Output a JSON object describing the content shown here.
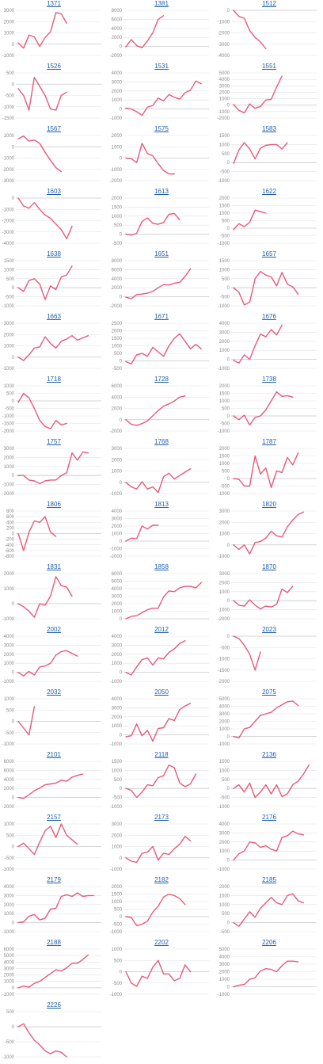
{
  "chart_data": [
    {
      "type": "line",
      "title": "1371",
      "ylim": [
        -1000,
        3000
      ],
      "yticks": [
        -1000,
        0,
        1000,
        2000,
        3000
      ],
      "y": [
        100,
        -350,
        800,
        650,
        -200,
        600,
        1100,
        2800,
        2700,
        1850
      ]
    },
    {
      "type": "line",
      "title": "1381",
      "ylim": [
        -2000,
        8000
      ],
      "yticks": [
        -2000,
        0,
        2000,
        4000,
        6000,
        8000
      ],
      "y": [
        -100,
        1500,
        200,
        -300,
        1200,
        3000,
        6000,
        6800
      ]
    },
    {
      "type": "line",
      "title": "1512",
      "ylim": [
        -4000,
        0
      ],
      "yticks": [
        -4000,
        -3000,
        -2000,
        -1000,
        0
      ],
      "y": [
        0,
        -550,
        -700,
        -1800,
        -2400,
        -2800,
        -3400
      ]
    },
    {
      "type": "line",
      "title": "1526",
      "ylim": [
        -1500,
        500
      ],
      "yticks": [
        -1500,
        -1000,
        -500,
        0,
        500
      ],
      "y": [
        -200,
        -500,
        -1150,
        300,
        -100,
        -500,
        -1100,
        -1150,
        -500,
        -350
      ]
    },
    {
      "type": "line",
      "title": "1531",
      "ylim": [
        -1000,
        4000
      ],
      "yticks": [
        -1000,
        0,
        1000,
        2000,
        3000,
        4000
      ],
      "y": [
        100,
        0,
        -300,
        -700,
        200,
        400,
        1200,
        900,
        1600,
        1300,
        1100,
        1800,
        2100,
        3100,
        2800
      ]
    },
    {
      "type": "line",
      "title": "1551",
      "ylim": [
        -2000,
        5000
      ],
      "yticks": [
        -2000,
        -1000,
        0,
        1000,
        2000,
        3000,
        4000,
        5000
      ],
      "y": [
        100,
        -800,
        -1200,
        200,
        -500,
        -200,
        800,
        900,
        2800,
        4500
      ]
    },
    {
      "type": "line",
      "title": "1567",
      "ylim": [
        -3000,
        1000
      ],
      "yticks": [
        -3000,
        -2000,
        -1000,
        0,
        1000
      ],
      "y": [
        700,
        950,
        500,
        600,
        300,
        -500,
        -1200,
        -1850,
        -2200
      ]
    },
    {
      "type": "line",
      "title": "1575",
      "ylim": [
        -2000,
        2000
      ],
      "yticks": [
        -2000,
        -1000,
        0,
        1000,
        2000
      ],
      "y": [
        0,
        -50,
        -400,
        1300,
        400,
        200,
        -500,
        -1100,
        -1400,
        -1400
      ]
    },
    {
      "type": "line",
      "title": "1583",
      "ylim": [
        -1000,
        1500
      ],
      "yticks": [
        -1000,
        -500,
        0,
        500,
        1000,
        1500
      ],
      "y": [
        -50,
        700,
        1100,
        750,
        200,
        800,
        950,
        1000,
        1000,
        750,
        1100
      ]
    },
    {
      "type": "line",
      "title": "1603",
      "ylim": [
        -4000,
        0
      ],
      "yticks": [
        -4000,
        -3000,
        -2000,
        -1000,
        0
      ],
      "y": [
        0,
        -700,
        -900,
        -400,
        -1000,
        -1500,
        -1800,
        -2300,
        -2800,
        -3600,
        -2500
      ]
    },
    {
      "type": "line",
      "title": "1613",
      "ylim": [
        -500,
        2000
      ],
      "yticks": [
        -500,
        0,
        500,
        1000,
        1500,
        2000
      ],
      "y": [
        0,
        -50,
        50,
        700,
        900,
        600,
        550,
        650,
        1100,
        1150,
        800
      ]
    },
    {
      "type": "line",
      "title": "1622",
      "ylim": [
        -1000,
        2000
      ],
      "yticks": [
        -1000,
        -500,
        0,
        500,
        1000,
        1500,
        2000
      ],
      "y": [
        -100,
        300,
        100,
        400,
        1200,
        1100,
        1000
      ]
    },
    {
      "type": "line",
      "title": "1638",
      "ylim": [
        -1000,
        1500
      ],
      "yticks": [
        -1000,
        -500,
        0,
        500,
        1000,
        1500
      ],
      "y": [
        0,
        -200,
        400,
        500,
        200,
        -650,
        100,
        -100,
        600,
        700,
        1200
      ]
    },
    {
      "type": "line",
      "title": "1651",
      "ylim": [
        -2000,
        8000
      ],
      "yticks": [
        -2000,
        0,
        2000,
        4000,
        6000,
        8000
      ],
      "y": [
        -100,
        -400,
        500,
        600,
        800,
        1200,
        2000,
        2700,
        2600,
        3000,
        3200,
        4500,
        6200
      ]
    },
    {
      "type": "line",
      "title": "1657",
      "ylim": [
        -1000,
        1500
      ],
      "yticks": [
        -1000,
        -500,
        0,
        500,
        1000,
        1500
      ],
      "y": [
        0,
        -250,
        -950,
        -800,
        500,
        900,
        700,
        600,
        100,
        850,
        200,
        50,
        -350
      ]
    },
    {
      "type": "line",
      "title": "1663",
      "ylim": [
        -1000,
        3000
      ],
      "yticks": [
        -1000,
        0,
        1000,
        2000,
        3000
      ],
      "y": [
        0,
        -300,
        200,
        800,
        900,
        1800,
        1200,
        800,
        1400,
        1600,
        1900,
        1500,
        1700,
        1900
      ]
    },
    {
      "type": "line",
      "title": "1671",
      "ylim": [
        -500,
        2500
      ],
      "yticks": [
        -500,
        0,
        500,
        1000,
        1500,
        2000,
        2500
      ],
      "y": [
        -50,
        -200,
        400,
        500,
        300,
        900,
        600,
        300,
        1000,
        1500,
        1800,
        1300,
        800,
        1100,
        800
      ]
    },
    {
      "type": "line",
      "title": "1676",
      "ylim": [
        -1000,
        4000
      ],
      "yticks": [
        -1000,
        0,
        1000,
        2000,
        3000,
        4000
      ],
      "y": [
        -100,
        -400,
        500,
        0,
        1500,
        2800,
        2500,
        3300,
        2700,
        3800
      ]
    },
    {
      "type": "line",
      "title": "1718",
      "ylim": [
        -2000,
        1000
      ],
      "yticks": [
        -2000,
        -1500,
        -1000,
        -500,
        0,
        500,
        1000
      ],
      "y": [
        -100,
        500,
        200,
        -500,
        -1300,
        -1700,
        -1850,
        -1300,
        -1600,
        -1500
      ]
    },
    {
      "type": "line",
      "title": "1728",
      "ylim": [
        -2000,
        6000
      ],
      "yticks": [
        -2000,
        0,
        2000,
        4000,
        6000
      ],
      "y": [
        0,
        -800,
        -1000,
        -700,
        -200,
        700,
        1600,
        2400,
        2800,
        3300,
        4000,
        4200
      ]
    },
    {
      "type": "line",
      "title": "1738",
      "ylim": [
        -1000,
        2000
      ],
      "yticks": [
        -1000,
        -500,
        0,
        500,
        1000,
        1500,
        2000
      ],
      "y": [
        0,
        -250,
        50,
        -600,
        -100,
        0,
        400,
        1000,
        1600,
        1300,
        1350,
        1250
      ]
    },
    {
      "type": "line",
      "title": "1757",
      "ylim": [
        -2000,
        3000
      ],
      "yticks": [
        -2000,
        -1000,
        0,
        1000,
        2000,
        3000
      ],
      "y": [
        0,
        0,
        -500,
        -600,
        -900,
        -600,
        -500,
        -500,
        0,
        300,
        2500,
        1700,
        2600,
        2500
      ]
    },
    {
      "type": "line",
      "title": "1768",
      "ylim": [
        -1000,
        3000
      ],
      "yticks": [
        -1000,
        0,
        1000,
        2000,
        3000
      ],
      "y": [
        0,
        -400,
        -600,
        50,
        -600,
        -400,
        -900,
        500,
        800,
        300,
        600,
        900,
        1200
      ]
    },
    {
      "type": "line",
      "title": "1787",
      "ylim": [
        -1000,
        2000
      ],
      "yticks": [
        -1000,
        -500,
        0,
        500,
        1000,
        1500,
        2000
      ],
      "y": [
        0,
        -50,
        -500,
        -500,
        1500,
        300,
        700,
        -600,
        500,
        400,
        1400,
        900,
        1700
      ]
    },
    {
      "type": "line",
      "title": "1806",
      "ylim": [
        -800,
        800
      ],
      "yticks": [
        -800,
        -600,
        -400,
        -200,
        0,
        200,
        400,
        600,
        800
      ],
      "y": [
        0,
        -600,
        50,
        450,
        400,
        600,
        50,
        -100
      ]
    },
    {
      "type": "line",
      "title": "1813",
      "ylim": [
        -2000,
        4000
      ],
      "yticks": [
        -2000,
        -1000,
        0,
        1000,
        2000,
        3000,
        4000
      ],
      "y": [
        0,
        400,
        300,
        2000,
        1600,
        2100,
        2100
      ]
    },
    {
      "type": "line",
      "title": "1820",
      "ylim": [
        -1000,
        3000
      ],
      "yticks": [
        -1000,
        0,
        1000,
        2000,
        3000
      ],
      "y": [
        0,
        -400,
        0,
        -800,
        200,
        300,
        600,
        1200,
        800,
        700,
        1600,
        2200,
        2700,
        2900
      ]
    },
    {
      "type": "line",
      "title": "1831",
      "ylim": [
        -1000,
        2000
      ],
      "yticks": [
        -1000,
        0,
        1000,
        2000
      ],
      "y": [
        0,
        -200,
        -500,
        -900,
        0,
        -100,
        500,
        1800,
        1200,
        1100,
        500
      ]
    },
    {
      "type": "line",
      "title": "1858",
      "ylim": [
        0,
        6000
      ],
      "yticks": [
        0,
        1000,
        2000,
        3000,
        4000,
        5000,
        6000
      ],
      "y": [
        0,
        300,
        400,
        800,
        1200,
        1400,
        1400,
        2900,
        3700,
        3600,
        4100,
        4300,
        4300,
        4100,
        4800
      ]
    },
    {
      "type": "line",
      "title": "1870",
      "ylim": [
        -2000,
        3000
      ],
      "yticks": [
        -2000,
        -1000,
        0,
        1000,
        2000,
        3000
      ],
      "y": [
        0,
        -500,
        -600,
        100,
        -500,
        -900,
        -600,
        -700,
        -400,
        1300,
        900,
        1600
      ]
    },
    {
      "type": "line",
      "title": "2002",
      "ylim": [
        -1000,
        4000
      ],
      "yticks": [
        -1000,
        0,
        1000,
        2000,
        3000,
        4000
      ],
      "y": [
        0,
        -400,
        100,
        -300,
        600,
        700,
        1000,
        1900,
        2300,
        2400,
        2100,
        1800
      ]
    },
    {
      "type": "line",
      "title": "2012",
      "ylim": [
        -1000,
        4000
      ],
      "yticks": [
        -1000,
        0,
        1000,
        2000,
        3000,
        4000
      ],
      "y": [
        0,
        -300,
        600,
        1400,
        1600,
        800,
        1600,
        1500,
        2200,
        2600,
        3200,
        3500
      ]
    },
    {
      "type": "line",
      "title": "2023",
      "ylim": [
        -2000,
        0
      ],
      "yticks": [
        -2000,
        -1500,
        -1000,
        -500,
        0
      ],
      "y": [
        0,
        -100,
        -400,
        -800,
        -1500,
        -700
      ]
    },
    {
      "type": "line",
      "title": "2032",
      "ylim": [
        -1000,
        1000
      ],
      "yticks": [
        -1000,
        -500,
        0,
        500,
        1000
      ],
      "y": [
        0,
        -300,
        -600,
        650
      ]
    },
    {
      "type": "line",
      "title": "2050",
      "ylim": [
        -1000,
        4000
      ],
      "yticks": [
        -1000,
        0,
        1000,
        2000,
        3000,
        4000
      ],
      "y": [
        -200,
        -100,
        1200,
        -100,
        500,
        -700,
        700,
        800,
        1800,
        1600,
        2800,
        3200,
        3500
      ]
    },
    {
      "type": "line",
      "title": "2075",
      "ylim": [
        -1000,
        5000
      ],
      "yticks": [
        -1000,
        0,
        1000,
        2000,
        3000,
        4000,
        5000
      ],
      "y": [
        0,
        -200,
        1000,
        1200,
        2000,
        2800,
        3000,
        3200,
        3800,
        4200,
        4600,
        4700,
        4100
      ]
    },
    {
      "type": "line",
      "title": "2101",
      "ylim": [
        -2000,
        8000
      ],
      "yticks": [
        -2000,
        0,
        2000,
        4000,
        6000,
        8000
      ],
      "y": [
        0,
        -200,
        600,
        1500,
        2100,
        2800,
        3000,
        3200,
        3800,
        3600,
        4500,
        4900,
        5200
      ]
    },
    {
      "type": "line",
      "title": "2118",
      "ylim": [
        -1000,
        1500
      ],
      "yticks": [
        -1000,
        -500,
        0,
        500,
        1000,
        1500
      ],
      "y": [
        0,
        -100,
        -500,
        -200,
        200,
        150,
        600,
        700,
        1300,
        1150,
        300,
        100,
        250,
        800
      ]
    },
    {
      "type": "line",
      "title": "2136",
      "ylim": [
        -1000,
        1500
      ],
      "yticks": [
        -1000,
        -500,
        0,
        500,
        1000,
        1500
      ],
      "y": [
        0,
        200,
        -200,
        300,
        -500,
        -200,
        200,
        -300,
        200,
        -450,
        -300,
        200,
        400,
        800,
        1300
      ]
    },
    {
      "type": "line",
      "title": "2157",
      "ylim": [
        -1000,
        1000
      ],
      "yticks": [
        -1000,
        -500,
        0,
        500,
        1000
      ],
      "y": [
        0,
        150,
        -100,
        -350,
        200,
        700,
        900,
        400,
        1000,
        500,
        300,
        100
      ]
    },
    {
      "type": "line",
      "title": "2173",
      "ylim": [
        -1000,
        3000
      ],
      "yticks": [
        -1000,
        0,
        1000,
        2000,
        3000
      ],
      "y": [
        0,
        -300,
        -400,
        400,
        500,
        1000,
        -200,
        400,
        300,
        800,
        1200,
        1900,
        1500
      ]
    },
    {
      "type": "line",
      "title": "2176",
      "ylim": [
        -1000,
        4000
      ],
      "yticks": [
        -1000,
        0,
        1000,
        2000,
        3000,
        4000
      ],
      "y": [
        0,
        700,
        1000,
        2000,
        1900,
        1400,
        1600,
        1200,
        1000,
        2500,
        2700,
        3200,
        2900,
        2800
      ]
    },
    {
      "type": "line",
      "title": "2179",
      "ylim": [
        -1000,
        4000
      ],
      "yticks": [
        -1000,
        0,
        1000,
        2000,
        3000,
        4000
      ],
      "y": [
        0,
        100,
        700,
        900,
        300,
        500,
        1500,
        1600,
        2900,
        3100,
        2900,
        3300,
        2900,
        3000,
        3000
      ]
    },
    {
      "type": "line",
      "title": "2182",
      "ylim": [
        -1000,
        2000
      ],
      "yticks": [
        -1000,
        -500,
        0,
        500,
        1000,
        1500,
        2000
      ],
      "y": [
        0,
        -50,
        -600,
        -500,
        -300,
        300,
        700,
        1300,
        1500,
        1400,
        1200,
        800
      ]
    },
    {
      "type": "line",
      "title": "2185",
      "ylim": [
        -500,
        2000
      ],
      "yticks": [
        -500,
        0,
        500,
        1000,
        1500,
        2000
      ],
      "y": [
        0,
        -200,
        200,
        600,
        300,
        800,
        1100,
        1400,
        1100,
        1000,
        1500,
        1600,
        1200,
        1100
      ]
    },
    {
      "type": "line",
      "title": "2188",
      "ylim": [
        -1000,
        6000
      ],
      "yticks": [
        -1000,
        0,
        1000,
        2000,
        3000,
        4000,
        5000,
        6000
      ],
      "y": [
        0,
        300,
        100,
        700,
        1000,
        1600,
        2200,
        2800,
        2600,
        3100,
        3800,
        3800,
        4400,
        5100
      ]
    },
    {
      "type": "line",
      "title": "2202",
      "ylim": [
        -1000,
        1000
      ],
      "yticks": [
        -1000,
        -500,
        0,
        500,
        1000
      ],
      "y": [
        0,
        -500,
        -650,
        -200,
        -300,
        200,
        500,
        -100,
        -100,
        -400,
        -300,
        300,
        0
      ]
    },
    {
      "type": "line",
      "title": "2206",
      "ylim": [
        -1000,
        5000
      ],
      "yticks": [
        -1000,
        0,
        1000,
        2000,
        3000,
        4000,
        5000
      ],
      "y": [
        0,
        200,
        300,
        1000,
        1200,
        2100,
        2400,
        2300,
        2000,
        2800,
        3400,
        3400,
        3300
      ]
    },
    {
      "type": "line",
      "title": "2226",
      "ylim": [
        -1000,
        500
      ],
      "yticks": [
        -1000,
        -500,
        0,
        500
      ],
      "y": [
        0,
        100,
        -200,
        -450,
        -600,
        -800,
        -900,
        -800,
        -850,
        -1000
      ]
    }
  ]
}
